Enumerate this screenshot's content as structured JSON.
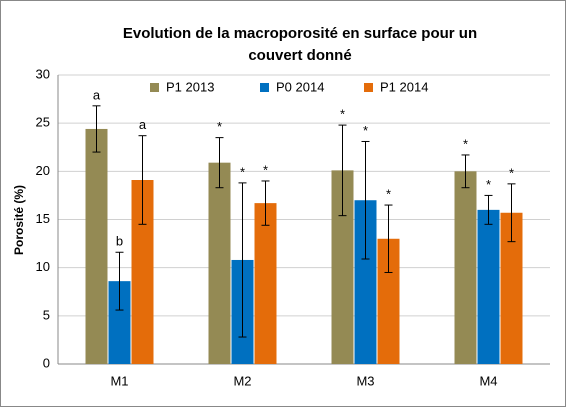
{
  "chart_data": {
    "type": "bar",
    "title": [
      "Evolution de la macroporosité en surface pour un",
      "couvert donné"
    ],
    "ylabel": "Porosité (%)",
    "categories": [
      "M1",
      "M2",
      "M3",
      "M4"
    ],
    "series": [
      {
        "name": "P1 2013",
        "color": "#948a54",
        "values": [
          24.4,
          20.9,
          20.1,
          20.0
        ],
        "errors": [
          2.4,
          2.6,
          4.7,
          1.7
        ],
        "labels": [
          "a",
          "*",
          "*",
          "*"
        ]
      },
      {
        "name": "P0 2014",
        "color": "#0070c0",
        "values": [
          8.6,
          10.8,
          17.0,
          16.0
        ],
        "errors": [
          3.0,
          8.0,
          6.1,
          1.5
        ],
        "labels": [
          "b",
          "*",
          "*",
          "*"
        ]
      },
      {
        "name": "P1 2014",
        "color": "#e46c0a",
        "values": [
          19.1,
          16.7,
          13.0,
          15.7
        ],
        "errors": [
          4.6,
          2.3,
          3.5,
          3.0
        ],
        "labels": [
          "a",
          "*",
          "*",
          "*"
        ]
      }
    ],
    "ylim": [
      0,
      30
    ],
    "yticks": [
      0,
      5,
      10,
      15,
      20,
      25,
      30
    ],
    "grid": true,
    "legend": "top"
  }
}
